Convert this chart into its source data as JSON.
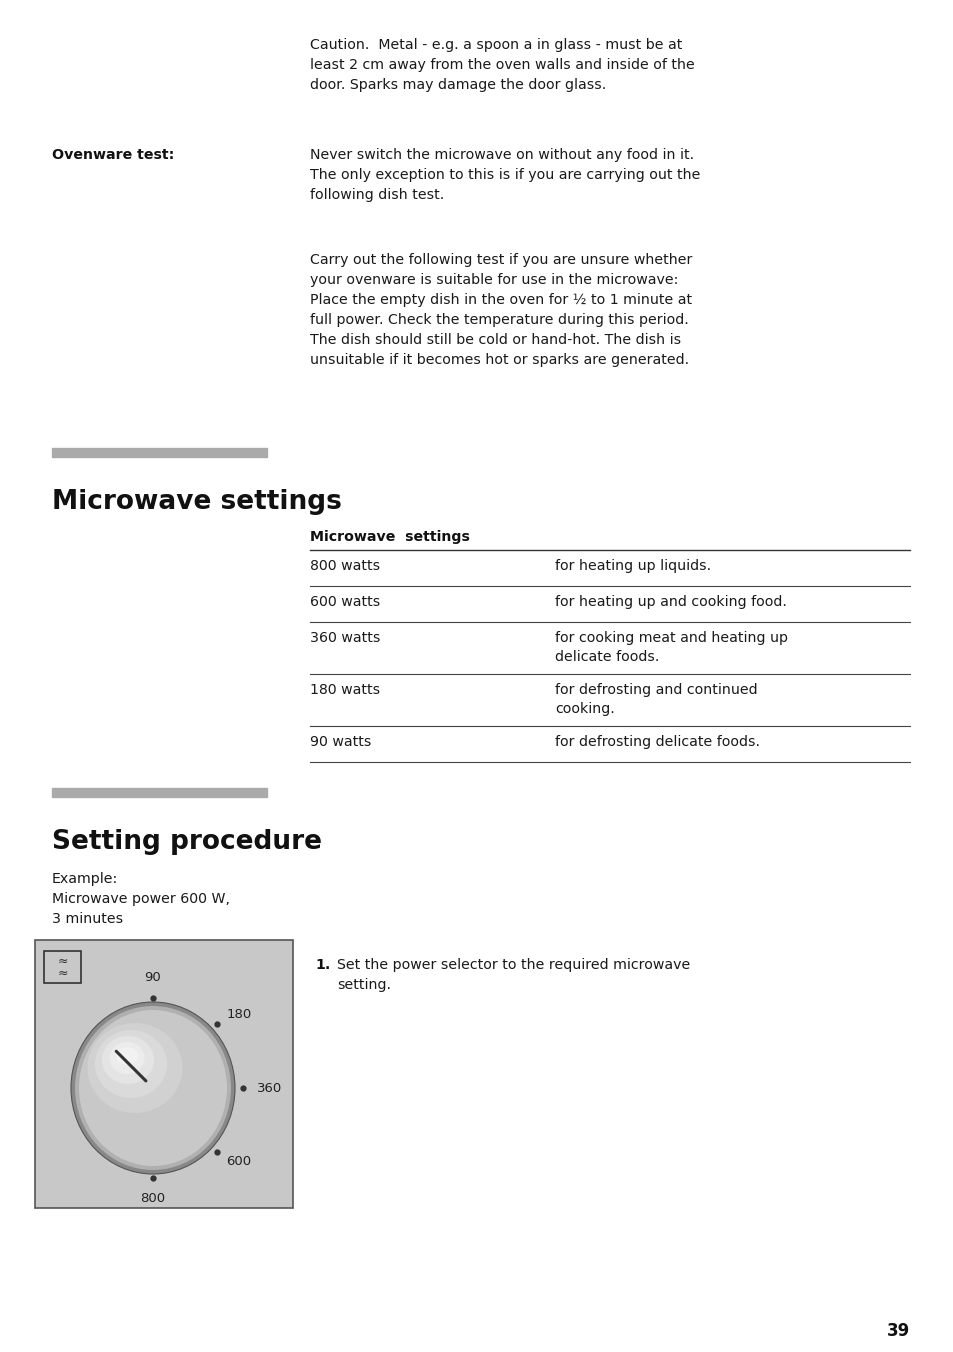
{
  "bg_color": "#ffffff",
  "page_number": "39",
  "caution_text": "Caution.  Metal - e.g. a spoon a in glass - must be at\nleast 2 cm away from the oven walls and inside of the\ndoor. Sparks may damage the door glass.",
  "ovenware_label": "Ovenware test:",
  "ovenware_text1": "Never switch the microwave on without any food in it.\nThe only exception to this is if you are carrying out the\nfollowing dish test.",
  "ovenware_text2": "Carry out the following test if you are unsure whether\nyour ovenware is suitable for use in the microwave:\nPlace the empty dish in the oven for ½ to 1 minute at\nfull power. Check the temperature during this period.\nThe dish should still be cold or hand-hot. The dish is\nunsuitable if it becomes hot or sparks are generated.",
  "section1_title": "Microwave settings",
  "section1_bar_color": "#aaaaaa",
  "table_header": "Microwave  settings",
  "table_rows": [
    [
      "800 watts",
      "for heating up liquids."
    ],
    [
      "600 watts",
      "for heating up and cooking food."
    ],
    [
      "360 watts",
      "for cooking meat and heating up\ndelicate foods."
    ],
    [
      "180 watts",
      "for defrosting and continued\ncooking."
    ],
    [
      "90 watts",
      "for defrosting delicate foods."
    ]
  ],
  "section2_title": "Setting procedure",
  "section2_bar_color": "#aaaaaa",
  "example_text": "Example:\nMicrowave power 600 W,\n3 minutes",
  "step1_num": "1.",
  "step1_text": "Set the power selector to the required microwave\nsetting.",
  "knob_bg": "#c8c8c8",
  "knob_border": "#555555"
}
